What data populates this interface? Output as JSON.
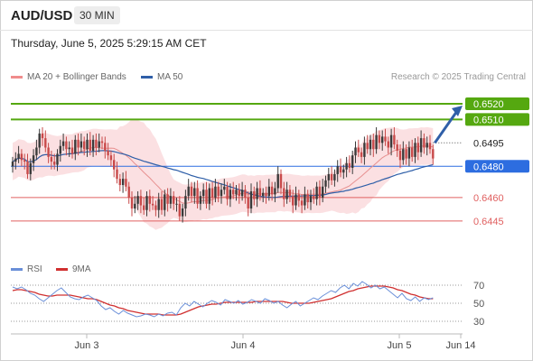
{
  "header": {
    "symbol": "AUD/USD",
    "timeframe": "30 MIN",
    "timestamp": "Thursday, June 5, 2025 5:29:15 AM CET"
  },
  "legend": {
    "ma20_bb": "MA 20 + Bollinger Bands",
    "ma50": "MA 50",
    "credit": "Research © 2025 Trading Central"
  },
  "rsi_legend": {
    "rsi": "RSI",
    "ma9": "9MA"
  },
  "colors": {
    "up": "#3a3a3a",
    "down": "#c84a4a",
    "bollinger_fill": "#fadadd",
    "ma20": "#e79090",
    "ma50": "#2f5fa8",
    "resistance": "#55a810",
    "support_blue": "#2d6de0",
    "support_red": "#e06060",
    "rsi": "#6a8fd8",
    "rsi_ma": "#d03030",
    "arrow": "#2f5fa8"
  },
  "chart_data": [
    {
      "type": "candlestick",
      "y_range": [
        0.6427,
        0.6531
      ],
      "x_labels": [
        "Jun 3",
        "Jun 4",
        "Jun 5",
        "Jun 14"
      ],
      "levels": [
        {
          "value": 0.652,
          "label": "0.6520",
          "kind": "resistance"
        },
        {
          "value": 0.651,
          "label": "0.6510",
          "kind": "resistance"
        },
        {
          "value": 0.6495,
          "label": "0.6495",
          "kind": "current"
        },
        {
          "value": 0.648,
          "label": "0.6480",
          "kind": "pivot"
        },
        {
          "value": 0.646,
          "label": "0.6460",
          "kind": "support"
        },
        {
          "value": 0.6445,
          "label": "0.6445",
          "kind": "support"
        }
      ],
      "closes": [
        0.6483,
        0.6485,
        0.6488,
        0.6484,
        0.6483,
        0.6475,
        0.6482,
        0.6487,
        0.6492,
        0.6501,
        0.6498,
        0.6492,
        0.6486,
        0.6483,
        0.6481,
        0.6488,
        0.6493,
        0.6496,
        0.6491,
        0.6492,
        0.6488,
        0.6497,
        0.6492,
        0.6496,
        0.6491,
        0.6497,
        0.649,
        0.6497,
        0.6492,
        0.6496,
        0.6495,
        0.649,
        0.6487,
        0.6484,
        0.6478,
        0.6472,
        0.6468,
        0.6472,
        0.6467,
        0.646,
        0.6453,
        0.6456,
        0.6461,
        0.6455,
        0.6452,
        0.6461,
        0.6456,
        0.6455,
        0.6452,
        0.6459,
        0.6452,
        0.6462,
        0.6456,
        0.6461,
        0.6456,
        0.6456,
        0.6448,
        0.6453,
        0.6461,
        0.6467,
        0.6461,
        0.6466,
        0.6456,
        0.6461,
        0.6465,
        0.6456,
        0.6466,
        0.646,
        0.6467,
        0.6461,
        0.6465,
        0.6467,
        0.6459,
        0.6465,
        0.6462,
        0.6465,
        0.6461,
        0.6465,
        0.646,
        0.6453,
        0.6464,
        0.6459,
        0.6466,
        0.6461,
        0.6463,
        0.6461,
        0.6467,
        0.6462,
        0.6466,
        0.6475,
        0.6466,
        0.6459,
        0.6465,
        0.6461,
        0.6455,
        0.6462,
        0.6458,
        0.6455,
        0.6462,
        0.6457,
        0.6461,
        0.6459,
        0.6467,
        0.646,
        0.6467,
        0.6471,
        0.6475,
        0.6471,
        0.6475,
        0.648,
        0.6476,
        0.6478,
        0.6482,
        0.6479,
        0.6487,
        0.6492,
        0.6489,
        0.6486,
        0.6495,
        0.6491,
        0.6497,
        0.6491,
        0.65,
        0.6495,
        0.6499,
        0.6496,
        0.6492,
        0.65,
        0.6494,
        0.649,
        0.6484,
        0.6491,
        0.6485,
        0.6492,
        0.6486,
        0.6495,
        0.6489,
        0.6498,
        0.6492,
        0.6495,
        0.6491,
        0.6485
      ],
      "bollinger": {
        "upper_approx": 0.6508,
        "lower_approx": 0.6448
      },
      "ma20_approx": 0.6478,
      "ma50_approx": 0.6473
    },
    {
      "type": "line",
      "name": "RSI",
      "y_ticks": [
        70,
        50,
        30
      ],
      "y_range": [
        20,
        80
      ],
      "rsi": [
        68,
        66,
        68,
        65,
        61,
        59,
        55,
        52,
        56,
        60,
        64,
        67,
        62,
        57,
        55,
        54,
        57,
        59,
        56,
        53,
        47,
        43,
        45,
        41,
        38,
        42,
        39,
        37,
        35,
        36,
        38,
        37,
        35,
        38,
        36,
        39,
        40,
        37,
        45,
        50,
        47,
        52,
        49,
        46,
        50,
        53,
        51,
        48,
        54,
        52,
        50,
        53,
        49,
        51,
        54,
        52,
        50,
        55,
        53,
        50,
        52,
        48,
        45,
        49,
        52,
        47,
        50,
        53,
        56,
        54,
        58,
        61,
        64,
        62,
        67,
        70,
        66,
        72,
        69,
        74,
        71,
        67,
        70,
        66,
        68,
        64,
        60,
        56,
        61,
        55,
        53,
        57,
        52,
        56,
        54,
        56
      ],
      "ma9": [
        64,
        65,
        65,
        64,
        63,
        62,
        60,
        59,
        58,
        58,
        59,
        59,
        59,
        59,
        58,
        57,
        56,
        55,
        55,
        54,
        52,
        50,
        48,
        47,
        45,
        44,
        42,
        41,
        40,
        39,
        38,
        38,
        38,
        38,
        37,
        37,
        37,
        37,
        38,
        40,
        42,
        44,
        46,
        47,
        48,
        49,
        49,
        50,
        51,
        51,
        51,
        51,
        51,
        51,
        51,
        52,
        52,
        52,
        52,
        52,
        52,
        52,
        51,
        50,
        50,
        50,
        50,
        50,
        51,
        52,
        53,
        54,
        55,
        57,
        59,
        61,
        63,
        64,
        66,
        67,
        68,
        69,
        69,
        69,
        69,
        68,
        67,
        65,
        64,
        62,
        60,
        59,
        57,
        56,
        55,
        55
      ]
    }
  ]
}
